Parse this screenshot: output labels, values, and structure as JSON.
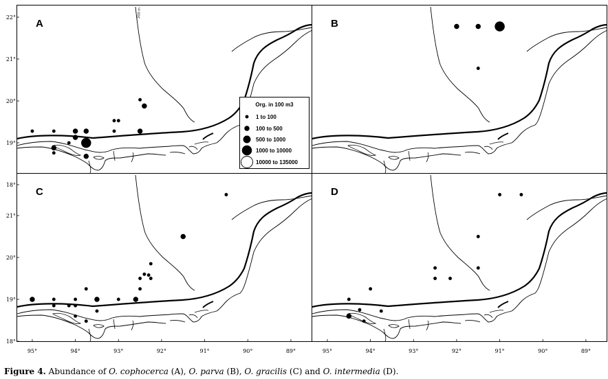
{
  "caption": {
    "label": "Figure 4.",
    "text_1": " Abundance of ",
    "species_a": "O. cophocerca",
    "text_2": " (A), ",
    "species_b": "O. parva",
    "text_3": " (B), ",
    "species_c": "O. gracilis",
    "text_4": " (C) and ",
    "species_d": "O. intermedia",
    "text_5": " (D)."
  },
  "map": {
    "isobath_label": "200 m",
    "lat_labels": [
      "22°",
      "21°",
      "20°",
      "19°",
      "18°"
    ],
    "lat_values": [
      22,
      21,
      20,
      19,
      18
    ],
    "lon_labels": [
      "95°",
      "94°",
      "93°",
      "92°",
      "91°",
      "90°",
      "89°"
    ],
    "lon_values": [
      95,
      94,
      93,
      92,
      91,
      90,
      89
    ],
    "lon_range": [
      95.35,
      88.52
    ],
    "lat_range": [
      18,
      22
    ]
  },
  "legend": {
    "title": "Org. in 100 m3",
    "classes": [
      {
        "label": "1  to  100",
        "size_class": 1,
        "filled": true
      },
      {
        "label": "100  to  500",
        "size_class": 2,
        "filled": true
      },
      {
        "label": "500  to  1000",
        "size_class": 3,
        "filled": true
      },
      {
        "label": "1000  to  10000",
        "size_class": 4,
        "filled": true
      },
      {
        "label": "10000  to  135000",
        "size_class": 5,
        "filled": false
      }
    ]
  },
  "chart_data": {
    "type": "scatter",
    "value_key": "abundance size class (1 = 1-100, 2 = 100-500, 3 = 500-1000, 4 = 1000-10000, 5 = 10000-135000 org. in 100 m3)",
    "panels": [
      {
        "id": "A",
        "label": "A",
        "species": "O. cophocerca",
        "points": [
          {
            "lon": 95.0,
            "lat": 19.0,
            "size_class": 1
          },
          {
            "lon": 94.5,
            "lat": 19.0,
            "size_class": 1
          },
          {
            "lon": 94.5,
            "lat": 18.6,
            "size_class": 2
          },
          {
            "lon": 94.5,
            "lat": 18.48,
            "size_class": 1
          },
          {
            "lon": 94.15,
            "lat": 18.72,
            "size_class": 1
          },
          {
            "lon": 94.0,
            "lat": 19.0,
            "size_class": 2
          },
          {
            "lon": 94.0,
            "lat": 18.85,
            "size_class": 2
          },
          {
            "lon": 93.75,
            "lat": 19.0,
            "size_class": 2
          },
          {
            "lon": 93.75,
            "lat": 18.72,
            "size_class": 4
          },
          {
            "lon": 93.75,
            "lat": 18.4,
            "size_class": 2
          },
          {
            "lon": 93.1,
            "lat": 19.25,
            "size_class": 1
          },
          {
            "lon": 93.0,
            "lat": 19.25,
            "size_class": 1
          },
          {
            "lon": 93.1,
            "lat": 19.0,
            "size_class": 1
          },
          {
            "lon": 92.5,
            "lat": 19.75,
            "size_class": 1
          },
          {
            "lon": 92.4,
            "lat": 19.6,
            "size_class": 2
          },
          {
            "lon": 92.5,
            "lat": 19.0,
            "size_class": 2
          }
        ]
      },
      {
        "id": "B",
        "label": "B",
        "species": "O. parva",
        "points": [
          {
            "lon": 92.0,
            "lat": 21.5,
            "size_class": 2
          },
          {
            "lon": 91.5,
            "lat": 21.5,
            "size_class": 2
          },
          {
            "lon": 91.0,
            "lat": 21.5,
            "size_class": 4
          },
          {
            "lon": 91.5,
            "lat": 20.5,
            "size_class": 1
          }
        ]
      },
      {
        "id": "C",
        "label": "C",
        "species": "O. gracilis",
        "points": [
          {
            "lon": 95.0,
            "lat": 19.0,
            "size_class": 2
          },
          {
            "lon": 94.5,
            "lat": 19.0,
            "size_class": 1
          },
          {
            "lon": 94.5,
            "lat": 18.85,
            "size_class": 1
          },
          {
            "lon": 94.0,
            "lat": 19.0,
            "size_class": 1
          },
          {
            "lon": 94.15,
            "lat": 18.85,
            "size_class": 1
          },
          {
            "lon": 94.0,
            "lat": 18.85,
            "size_class": 1
          },
          {
            "lon": 94.0,
            "lat": 18.6,
            "size_class": 1
          },
          {
            "lon": 93.75,
            "lat": 19.25,
            "size_class": 1
          },
          {
            "lon": 93.5,
            "lat": 19.0,
            "size_class": 2
          },
          {
            "lon": 93.5,
            "lat": 18.72,
            "size_class": 1
          },
          {
            "lon": 93.75,
            "lat": 18.48,
            "size_class": 1
          },
          {
            "lon": 93.0,
            "lat": 19.0,
            "size_class": 1
          },
          {
            "lon": 92.6,
            "lat": 19.0,
            "size_class": 2
          },
          {
            "lon": 92.25,
            "lat": 19.85,
            "size_class": 1
          },
          {
            "lon": 92.4,
            "lat": 19.6,
            "size_class": 1
          },
          {
            "lon": 92.3,
            "lat": 19.58,
            "size_class": 1
          },
          {
            "lon": 92.5,
            "lat": 19.5,
            "size_class": 1
          },
          {
            "lon": 92.25,
            "lat": 19.5,
            "size_class": 1
          },
          {
            "lon": 92.5,
            "lat": 19.25,
            "size_class": 1
          },
          {
            "lon": 91.5,
            "lat": 20.5,
            "size_class": 2
          },
          {
            "lon": 90.5,
            "lat": 21.5,
            "size_class": 1
          }
        ]
      },
      {
        "id": "D",
        "label": "D",
        "species": "O. intermedia",
        "points": [
          {
            "lon": 91.0,
            "lat": 21.5,
            "size_class": 1
          },
          {
            "lon": 90.5,
            "lat": 21.5,
            "size_class": 1
          },
          {
            "lon": 91.5,
            "lat": 20.5,
            "size_class": 1
          },
          {
            "lon": 91.5,
            "lat": 19.75,
            "size_class": 1
          },
          {
            "lon": 92.5,
            "lat": 19.75,
            "size_class": 1
          },
          {
            "lon": 92.5,
            "lat": 19.5,
            "size_class": 1
          },
          {
            "lon": 92.15,
            "lat": 19.5,
            "size_class": 1
          },
          {
            "lon": 94.0,
            "lat": 19.25,
            "size_class": 1
          },
          {
            "lon": 94.5,
            "lat": 19.0,
            "size_class": 1
          },
          {
            "lon": 94.25,
            "lat": 18.75,
            "size_class": 1
          },
          {
            "lon": 93.75,
            "lat": 18.72,
            "size_class": 1
          },
          {
            "lon": 94.5,
            "lat": 18.6,
            "size_class": 2
          },
          {
            "lon": 94.15,
            "lat": 18.48,
            "size_class": 1
          }
        ]
      }
    ]
  }
}
